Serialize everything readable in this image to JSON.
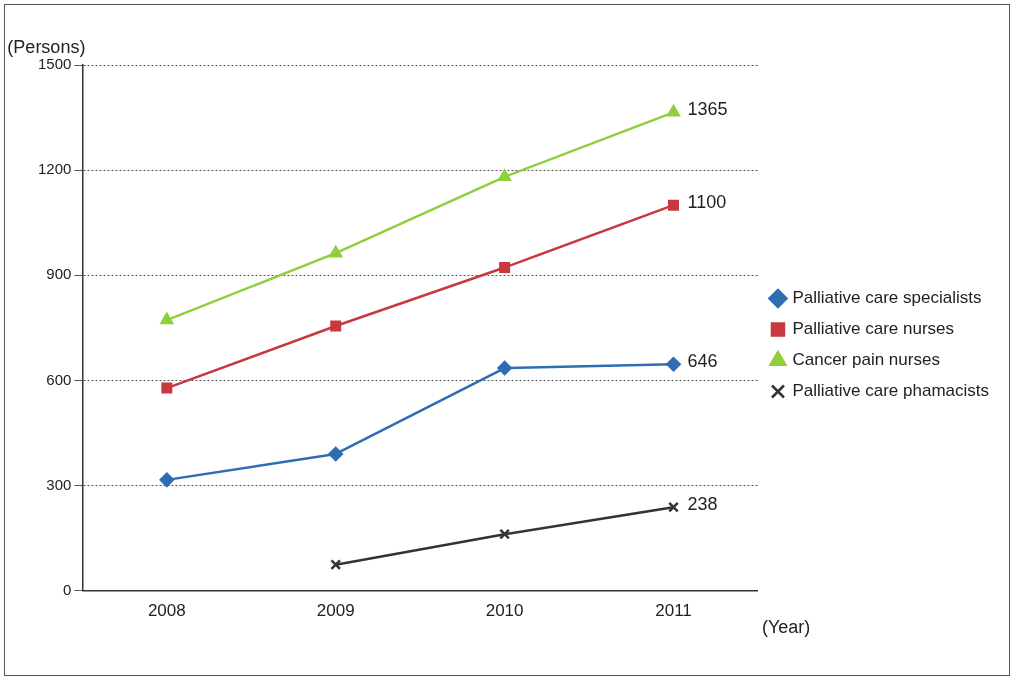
{
  "chart_data": {
    "type": "line",
    "ylabel": "(Persons)",
    "xlabel": "(Year)",
    "categories": [
      "2008",
      "2009",
      "2010",
      "2011"
    ],
    "ylim": [
      0,
      1500
    ],
    "yticks": [
      0,
      300,
      600,
      900,
      1200,
      1500
    ],
    "grid": "y",
    "legend": "right",
    "series": [
      {
        "name": "Palliative care specialists",
        "color": "#2e6db4",
        "marker": "diamond",
        "values": [
          316,
          390,
          635,
          646
        ],
        "value_labels": [
          null,
          null,
          null,
          "646"
        ]
      },
      {
        "name": "Palliative care nurses",
        "color": "#c8393f",
        "marker": "square",
        "values": [
          578,
          755,
          922,
          1100
        ],
        "value_labels": [
          null,
          null,
          null,
          "1100"
        ]
      },
      {
        "name": "Cancer pain nurses",
        "color": "#8fcf3c",
        "marker": "triangle",
        "values": [
          772,
          963,
          1181,
          1365
        ],
        "value_labels": [
          null,
          null,
          null,
          "1365"
        ]
      },
      {
        "name": "Palliative care phamacists",
        "color": "#333333",
        "marker": "cross",
        "values": [
          null,
          74,
          161,
          238
        ],
        "value_labels": [
          null,
          null,
          null,
          "238"
        ]
      }
    ]
  }
}
